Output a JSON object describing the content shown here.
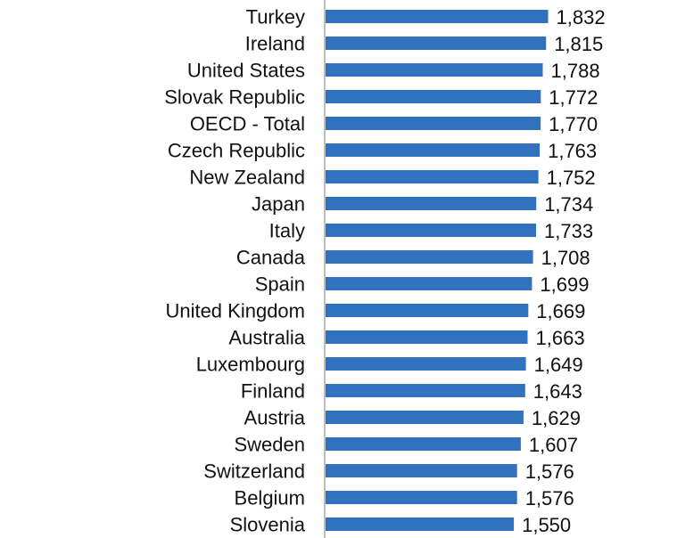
{
  "chart_data": {
    "type": "bar",
    "orientation": "horizontal",
    "title": "",
    "xlabel": "",
    "ylabel": "",
    "bar_color": "#3072BE",
    "axis_color": "#7f7f7f",
    "grid": false,
    "legend": "none",
    "categories": [
      "Turkey",
      "Ireland",
      "United States",
      "Slovak Republic",
      "OECD - Total",
      "Czech Republic",
      "New Zealand",
      "Japan",
      "Italy",
      "Canada",
      "Spain",
      "United Kingdom",
      "Australia",
      "Luxembourg",
      "Finland",
      "Austria",
      "Sweden",
      "Switzerland",
      "Belgium",
      "Slovenia"
    ],
    "values": [
      1832,
      1815,
      1788,
      1772,
      1770,
      1763,
      1752,
      1734,
      1733,
      1708,
      1699,
      1669,
      1663,
      1649,
      1643,
      1629,
      1607,
      1576,
      1576,
      1550
    ],
    "value_labels": [
      "1,832",
      "1,815",
      "1,788",
      "1,772",
      "1,770",
      "1,763",
      "1,752",
      "1,734",
      "1,733",
      "1,708",
      "1,699",
      "1,669",
      "1,663",
      "1,649",
      "1,643",
      "1,629",
      "1,607",
      "1,576",
      "1,576",
      "1,550"
    ]
  }
}
